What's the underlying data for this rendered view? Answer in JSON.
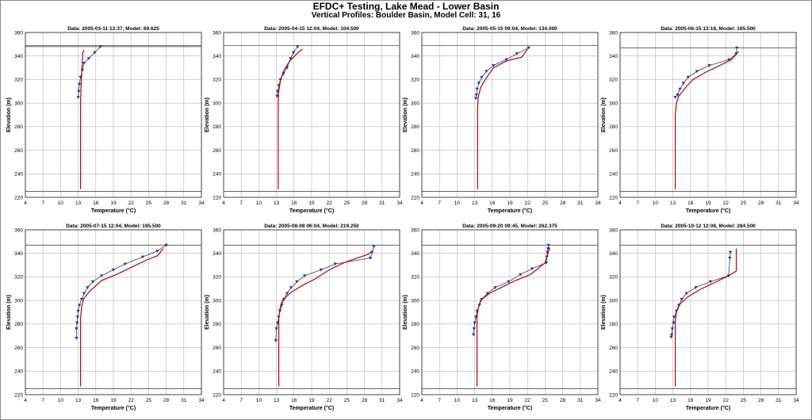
{
  "figure": {
    "title": "EFDC+ Testing, Lake Mead - Lower Basin",
    "subtitle": "Vertical Profiles: Boulder Basin, Model Cell: 31, 16"
  },
  "colors": {
    "data": "#2a3a8c",
    "model": "#c00000",
    "grid": "#b4b4b4",
    "reference_line": "#505050"
  },
  "chart_data": [
    {
      "type": "line",
      "title": "Data: 2005-03-11 13:37, Model: 69.625",
      "xlabel": "Temperature (°C)",
      "ylabel": "Elevation (m)",
      "xlim": [
        4,
        34
      ],
      "ylim": [
        220,
        360
      ],
      "xticks": [
        4,
        7,
        10,
        13,
        16,
        19,
        22,
        25,
        28,
        31,
        34
      ],
      "yticks": [
        220,
        240,
        260,
        280,
        300,
        320,
        340,
        360
      ],
      "grid": true,
      "reference_lines": [
        349,
        348
      ],
      "series": [
        {
          "role": "data",
          "x": [
            16.8,
            15.8,
            14.8,
            14.0,
            13.7,
            13.4,
            13.2,
            13.1,
            13.0
          ],
          "y": [
            348,
            343,
            338,
            334,
            328,
            322,
            316,
            310,
            305
          ]
        },
        {
          "role": "model",
          "x": [
            13.4,
            13.4,
            13.5,
            13.6,
            13.7,
            13.8,
            14.0
          ],
          "y": [
            227,
            300,
            315,
            325,
            335,
            343,
            345
          ]
        }
      ]
    },
    {
      "type": "line",
      "title": "Data: 2005-04-15 12:04, Model: 104.500",
      "xlabel": "Temperature (°C)",
      "ylabel": "Elevation (m)",
      "xlim": [
        4,
        34
      ],
      "ylim": [
        220,
        360
      ],
      "xticks": [
        4,
        7,
        10,
        13,
        16,
        19,
        22,
        25,
        28,
        31,
        34
      ],
      "yticks": [
        220,
        240,
        260,
        280,
        300,
        320,
        340,
        360
      ],
      "grid": true,
      "reference_lines": [
        349
      ],
      "series": [
        {
          "role": "data",
          "x": [
            16.6,
            15.9,
            15.4,
            14.8,
            14.2,
            13.7,
            13.4,
            13.2,
            13.1
          ],
          "y": [
            348,
            343,
            338,
            330,
            325,
            320,
            315,
            310,
            306
          ]
        },
        {
          "role": "model",
          "x": [
            13.3,
            13.3,
            13.4,
            13.7,
            14.3,
            15.3,
            16.5,
            17.4
          ],
          "y": [
            227,
            300,
            310,
            320,
            328,
            336,
            342,
            346
          ]
        }
      ]
    },
    {
      "type": "line",
      "title": "Data: 2005-05-15 09:04, Model: 134.000",
      "xlabel": "Temperature (°C)",
      "ylabel": "Elevation (m)",
      "xlim": [
        4,
        34
      ],
      "ylim": [
        220,
        360
      ],
      "xticks": [
        4,
        7,
        10,
        13,
        16,
        19,
        22,
        25,
        28,
        31,
        34
      ],
      "yticks": [
        220,
        240,
        260,
        280,
        300,
        320,
        340,
        360
      ],
      "grid": true,
      "reference_lines": [
        349
      ],
      "series": [
        {
          "role": "data",
          "x": [
            22.2,
            20.2,
            18.4,
            16.2,
            15.0,
            14.2,
            13.7,
            13.4,
            13.3,
            13.2
          ],
          "y": [
            347,
            342,
            337,
            332,
            327,
            322,
            317,
            312,
            307,
            304
          ]
        },
        {
          "role": "model",
          "x": [
            13.5,
            13.5,
            13.6,
            14.0,
            14.8,
            16.2,
            18.5,
            21.0,
            22.0
          ],
          "y": [
            227,
            295,
            305,
            313,
            320,
            330,
            336,
            339,
            346
          ]
        }
      ]
    },
    {
      "type": "line",
      "title": "Data: 2005-06-15 13:18, Model: 165.500",
      "xlabel": "Temperature (°C)",
      "ylabel": "Elevation (m)",
      "xlim": [
        4,
        34
      ],
      "ylim": [
        220,
        360
      ],
      "xticks": [
        4,
        7,
        10,
        13,
        16,
        19,
        22,
        25,
        28,
        31,
        34
      ],
      "yticks": [
        220,
        240,
        260,
        280,
        300,
        320,
        340,
        360
      ],
      "grid": true,
      "reference_lines": [
        347
      ],
      "series": [
        {
          "role": "data",
          "x": [
            23.9,
            23.8,
            22.6,
            19.2,
            17.1,
            15.6,
            14.8,
            14.2,
            13.8,
            13.4
          ],
          "y": [
            347,
            342,
            337,
            332,
            327,
            322,
            317,
            312,
            307,
            305
          ]
        },
        {
          "role": "model",
          "x": [
            13.4,
            13.4,
            13.6,
            14.0,
            15.1,
            16.4,
            18.5,
            21.0,
            23.0,
            24.2
          ],
          "y": [
            227,
            290,
            300,
            306,
            313,
            320,
            326,
            332,
            337,
            344
          ]
        }
      ]
    },
    {
      "type": "line",
      "title": "Data: 2005-07-15 12:04, Model: 195.500",
      "xlabel": "Temperature (°C)",
      "ylabel": "Elevation (m)",
      "xlim": [
        4,
        34
      ],
      "ylim": [
        220,
        360
      ],
      "xticks": [
        4,
        7,
        10,
        13,
        16,
        19,
        22,
        25,
        28,
        31,
        34
      ],
      "yticks": [
        220,
        240,
        260,
        280,
        300,
        320,
        340,
        360
      ],
      "grid": true,
      "reference_lines": [
        347
      ],
      "series": [
        {
          "role": "data",
          "x": [
            28.0,
            26.5,
            24.0,
            21.0,
            19.0,
            17.0,
            15.5,
            14.6,
            14.0,
            13.6,
            13.2,
            13.0,
            12.9,
            12.8,
            12.7,
            12.7
          ],
          "y": [
            347,
            342,
            337,
            331,
            326,
            321,
            316,
            311,
            306,
            301,
            296,
            291,
            286,
            281,
            276,
            268
          ]
        },
        {
          "role": "model",
          "x": [
            13.4,
            13.4,
            13.6,
            14.0,
            15.0,
            17.0,
            19.5,
            22.0,
            24.5,
            26.5,
            27.5
          ],
          "y": [
            227,
            285,
            295,
            302,
            308,
            317,
            322,
            328,
            334,
            338,
            344
          ]
        }
      ]
    },
    {
      "type": "line",
      "title": "Data: 2005-08-08 06:04, Model: 219.250",
      "xlabel": "Temperature (°C)",
      "ylabel": "Elevation (m)",
      "xlim": [
        4,
        34
      ],
      "ylim": [
        220,
        360
      ],
      "xticks": [
        4,
        7,
        10,
        13,
        16,
        19,
        22,
        25,
        28,
        31,
        34
      ],
      "yticks": [
        220,
        240,
        260,
        280,
        300,
        320,
        340,
        360
      ],
      "grid": true,
      "reference_lines": [
        347
      ],
      "series": [
        {
          "role": "data",
          "x": [
            29.6,
            29.3,
            29.0,
            23.0,
            20.6,
            17.8,
            16.5,
            15.5,
            14.8,
            14.3,
            13.9,
            13.6,
            13.4,
            13.2,
            13.0,
            12.9
          ],
          "y": [
            346,
            341,
            336,
            331,
            326,
            321,
            316,
            311,
            306,
            301,
            296,
            291,
            286,
            281,
            276,
            266
          ]
        },
        {
          "role": "model",
          "x": [
            13.4,
            13.4,
            13.6,
            14.0,
            15.5,
            17.5,
            19.5,
            22.0,
            24.5,
            28.5,
            29.5
          ],
          "y": [
            227,
            285,
            293,
            300,
            307,
            313,
            318,
            326,
            332,
            339,
            342
          ]
        }
      ]
    },
    {
      "type": "line",
      "title": "Data: 2005-09-20 09:45, Model: 262.375",
      "xlabel": "Temperature (°C)",
      "ylabel": "Elevation (m)",
      "xlim": [
        4,
        34
      ],
      "ylim": [
        220,
        360
      ],
      "xticks": [
        4,
        7,
        10,
        13,
        16,
        19,
        22,
        25,
        28,
        31,
        34
      ],
      "yticks": [
        220,
        240,
        260,
        280,
        300,
        320,
        340,
        360
      ],
      "grid": true,
      "reference_lines": [
        347
      ],
      "series": [
        {
          "role": "data",
          "x": [
            25.6,
            25.5,
            25.4,
            25.3,
            25.2,
            22.8,
            20.8,
            18.8,
            16.5,
            15.2,
            14.2,
            13.8,
            13.4,
            13.2,
            13.0,
            12.9,
            12.8
          ],
          "y": [
            347,
            344,
            341,
            337,
            332,
            327,
            322,
            316,
            311,
            306,
            301,
            296,
            291,
            286,
            281,
            276,
            271
          ]
        },
        {
          "role": "model",
          "x": [
            13.4,
            13.4,
            13.6,
            14.0,
            15.5,
            17.5,
            20.0,
            22.5,
            25.0,
            25.5,
            25.8
          ],
          "y": [
            227,
            285,
            293,
            300,
            306,
            311,
            317,
            322,
            332,
            340,
            345
          ]
        }
      ]
    },
    {
      "type": "line",
      "title": "Data: 2005-10-12 12:08, Model: 284.500",
      "xlabel": "Temperature (°C)",
      "ylabel": "Elevation (m)",
      "xlim": [
        4,
        34
      ],
      "ylim": [
        220,
        360
      ],
      "xticks": [
        4,
        7,
        10,
        13,
        16,
        19,
        22,
        25,
        28,
        31,
        34
      ],
      "yticks": [
        220,
        240,
        260,
        280,
        300,
        320,
        340,
        360
      ],
      "grid": true,
      "reference_lines": [
        347
      ],
      "series": [
        {
          "role": "data",
          "x": [
            22.8,
            22.7,
            22.5,
            19.4,
            16.9,
            15.3,
            14.5,
            14.0,
            13.6,
            13.2,
            13.1,
            12.9,
            12.8,
            12.7
          ],
          "y": [
            341,
            336,
            321,
            316,
            311,
            306,
            301,
            296,
            291,
            286,
            281,
            276,
            271,
            269
          ]
        },
        {
          "role": "model",
          "x": [
            13.4,
            13.4,
            13.6,
            14.2,
            15.5,
            17.5,
            20.0,
            22.5,
            23.8,
            23.8
          ],
          "y": [
            227,
            282,
            290,
            297,
            303,
            309,
            315,
            321,
            325,
            344
          ]
        }
      ]
    }
  ]
}
